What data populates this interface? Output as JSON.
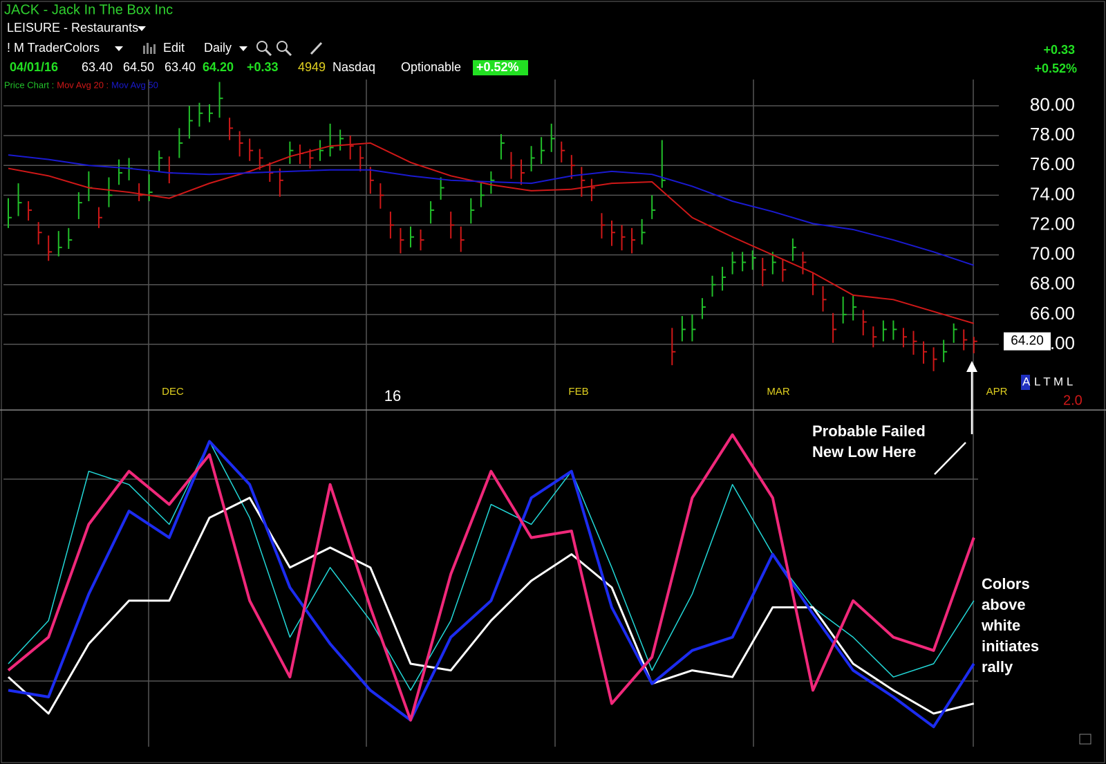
{
  "header": {
    "symbol": "JACK - Jack In The Box Inc",
    "industry": "LEISURE - Restaurants",
    "color_scheme": "! M TraderColors",
    "edit": "Edit",
    "period": "Daily",
    "quote": {
      "date": "04/01/16",
      "open": "63.40",
      "high": "64.50",
      "low": "63.40",
      "close": "64.20",
      "change": "+0.33",
      "volume": "4949",
      "exchange": "Nasdaq",
      "status": "Optionable",
      "change_pct": "+0.52%"
    },
    "side_change": "+0.33",
    "side_change_pct": "+0.52%",
    "legend": [
      {
        "label": "Price Chart :",
        "color": "#22c02a"
      },
      {
        "label": "Mov Avg 20 :",
        "color": "#d01818"
      },
      {
        "label": "Mov Avg 50",
        "color": "#1a1ad0"
      }
    ]
  },
  "chart_data": {
    "type": "ohlc",
    "ylim": [
      59.6,
      81.8
    ],
    "yticks": [
      {
        "value": 64,
        "label": "64.00"
      },
      {
        "value": 66,
        "label": "66.00"
      },
      {
        "value": 68,
        "label": "68.00"
      },
      {
        "value": 70,
        "label": "70.00"
      },
      {
        "value": 72,
        "label": "72.00"
      },
      {
        "value": 74,
        "label": "74.00"
      },
      {
        "value": 76,
        "label": "76.00"
      },
      {
        "value": 78,
        "label": "78.00"
      },
      {
        "value": 80,
        "label": "80.00"
      }
    ],
    "grid": true,
    "up_color": "#22c02a",
    "down_color": "#d01818",
    "close": [
      72.5,
      73.5,
      73,
      71.5,
      70.2,
      70.5,
      71,
      73.5,
      74.5,
      72.5,
      74,
      75.5,
      75.8,
      74,
      74.2,
      76.5,
      75.5,
      77.5,
      79,
      79.5,
      79.5,
      80.5,
      78.5,
      77.5,
      77,
      76.5,
      75.5,
      75,
      77,
      76.8,
      76.5,
      77,
      77.2,
      77.8,
      77.3,
      76.5,
      75,
      74,
      72,
      71,
      71.2,
      71,
      73,
      74.5,
      72,
      71,
      73,
      74,
      75,
      77.5,
      76,
      75.5,
      76.5,
      77,
      77.8,
      77,
      76,
      75,
      74.5,
      72,
      71.5,
      71.2,
      71,
      71.5,
      73,
      75,
      63.5,
      65,
      65,
      66.5,
      68,
      68.5,
      69.5,
      69.5,
      69.8,
      69,
      69.5,
      69,
      70.5,
      69.5,
      68,
      67,
      65,
      66,
      66.5,
      65.5,
      64.5,
      65,
      65,
      64.5,
      64.2,
      63.5,
      63,
      63.5,
      65,
      64.3,
      64.2
    ],
    "high": [
      73.8,
      74.8,
      73.6,
      72.2,
      71.3,
      71.6,
      71.8,
      74.2,
      75.6,
      73.2,
      75.2,
      76.4,
      76.5,
      74.8,
      75.4,
      77,
      76.6,
      78.5,
      80,
      80.2,
      80.1,
      81.6,
      79.2,
      78.3,
      77.8,
      77.1,
      76.2,
      75.8,
      77.6,
      77.4,
      77.1,
      77.7,
      78.8,
      78.4,
      78,
      77.3,
      75.9,
      74.8,
      72.9,
      71.8,
      71.9,
      71.7,
      73.6,
      75.2,
      72.9,
      71.9,
      73.8,
      74.8,
      75.6,
      78.1,
      76.9,
      76.4,
      77.3,
      77.9,
      78.8,
      77.6,
      76.7,
      75.9,
      75.1,
      72.8,
      72.3,
      72,
      71.8,
      72.4,
      74,
      77.7,
      65.1,
      65.9,
      66,
      67.1,
      68.6,
      69.2,
      70.2,
      70.2,
      70.3,
      69.8,
      70.2,
      69.7,
      71.1,
      70.2,
      68.8,
      67.9,
      66.1,
      67.2,
      67.3,
      66.3,
      65.2,
      65.6,
      65.6,
      65.1,
      64.9,
      64.2,
      63.8,
      64.3,
      65.4,
      65,
      64.5
    ],
    "low": [
      71.8,
      72.6,
      72.3,
      70.7,
      69.6,
      69.9,
      70.4,
      72.4,
      73.6,
      71.8,
      73.2,
      74.7,
      75,
      73.6,
      73.6,
      75.6,
      74.8,
      76.5,
      77.8,
      78.6,
      78.9,
      79.2,
      77.7,
      76.6,
      76.3,
      75.7,
      74.9,
      73.9,
      76.1,
      76.1,
      75.8,
      76.3,
      76.6,
      77,
      76.4,
      75.6,
      74.1,
      73.1,
      71.1,
      70.1,
      70.5,
      70.3,
      72.1,
      73.7,
      71.1,
      70.2,
      72.1,
      73.2,
      74.1,
      76.4,
      75.1,
      74.7,
      75.6,
      76.1,
      76.9,
      76.2,
      75.1,
      73.9,
      73.6,
      71.1,
      70.6,
      70.3,
      70.1,
      70.7,
      72.4,
      74.5,
      62.6,
      64.2,
      64.2,
      65.7,
      67.2,
      67.6,
      68.7,
      68.9,
      69,
      67.9,
      68.7,
      68.2,
      69.6,
      68.7,
      67.3,
      66.2,
      64.1,
      65.4,
      65.6,
      64.6,
      63.8,
      64.2,
      64.3,
      63.8,
      63.3,
      62.7,
      62.2,
      62.8,
      64.1,
      63.6,
      63.4
    ],
    "ma_x": [
      0,
      4,
      8,
      12,
      16,
      20,
      24,
      28,
      32,
      36,
      40,
      44,
      48,
      52,
      56,
      60,
      64,
      68,
      72,
      76,
      80,
      84,
      88,
      92,
      96
    ],
    "series": [
      {
        "color": "#d01818",
        "values": [
          75.8,
          75.3,
          74.5,
          74.2,
          73.8,
          74.8,
          75.6,
          76.6,
          77.3,
          77.5,
          76.2,
          75.3,
          74.7,
          74.3,
          74.4,
          74.8,
          74.9,
          72.5,
          71.2,
          70,
          68.8,
          67.3,
          67,
          66.2,
          65.4
        ]
      },
      {
        "color": "#1a1ad0",
        "values": [
          76.7,
          76.4,
          76,
          75.8,
          75.5,
          75.4,
          75.5,
          75.6,
          75.7,
          75.7,
          75.3,
          75,
          74.9,
          74.8,
          75.3,
          75.6,
          75.4,
          74.6,
          73.6,
          72.9,
          72.1,
          71.7,
          71,
          70.2,
          69.3
        ]
      }
    ],
    "month_labels": [
      "DEC",
      "16",
      "FEB",
      "MAR",
      "APR"
    ],
    "last_price_label": "64.20",
    "period_buttons_active": "A",
    "period_buttons": "L T M L",
    "scale_label": "2.0"
  },
  "oscillator": {
    "type": "line",
    "ylim": [
      0,
      100
    ],
    "x": [
      0,
      4,
      8,
      12,
      16,
      20,
      24,
      28,
      32,
      36,
      40,
      44,
      48,
      52,
      56,
      60,
      64,
      68,
      72,
      76,
      80,
      84,
      88,
      92,
      96
    ],
    "series": [
      {
        "color": "#22d8d8",
        "width": 1.5,
        "values": [
          25,
          38,
          83,
          79,
          67,
          92,
          69,
          33,
          54,
          38,
          17,
          38,
          73,
          67,
          83,
          54,
          23,
          46,
          79,
          58,
          42,
          33,
          21,
          25,
          44
        ]
      },
      {
        "color": "#ffffff",
        "width": 3,
        "values": [
          21,
          10,
          31,
          44,
          44,
          69,
          75,
          54,
          60,
          54,
          25,
          23,
          38,
          50,
          58,
          48,
          19,
          23,
          21,
          42,
          42,
          25,
          17,
          10,
          13
        ]
      },
      {
        "color": "#1c2cf0",
        "width": 4,
        "values": [
          17,
          15,
          46,
          71,
          63,
          92,
          79,
          48,
          31,
          17,
          8,
          33,
          44,
          75,
          83,
          42,
          19,
          29,
          33,
          58,
          40,
          23,
          15,
          6,
          25
        ]
      },
      {
        "color": "#f0287a",
        "width": 4,
        "values": [
          23,
          33,
          67,
          83,
          73,
          88,
          44,
          21,
          79,
          42,
          8,
          52,
          83,
          63,
          65,
          13,
          27,
          75,
          94,
          75,
          17,
          44,
          33,
          29,
          63
        ]
      }
    ]
  },
  "annotations": {
    "failed_low": [
      "Probable Failed",
      "New Low Here"
    ],
    "colors_note": [
      "Colors",
      "above",
      "white",
      "initiates",
      "rally"
    ]
  }
}
